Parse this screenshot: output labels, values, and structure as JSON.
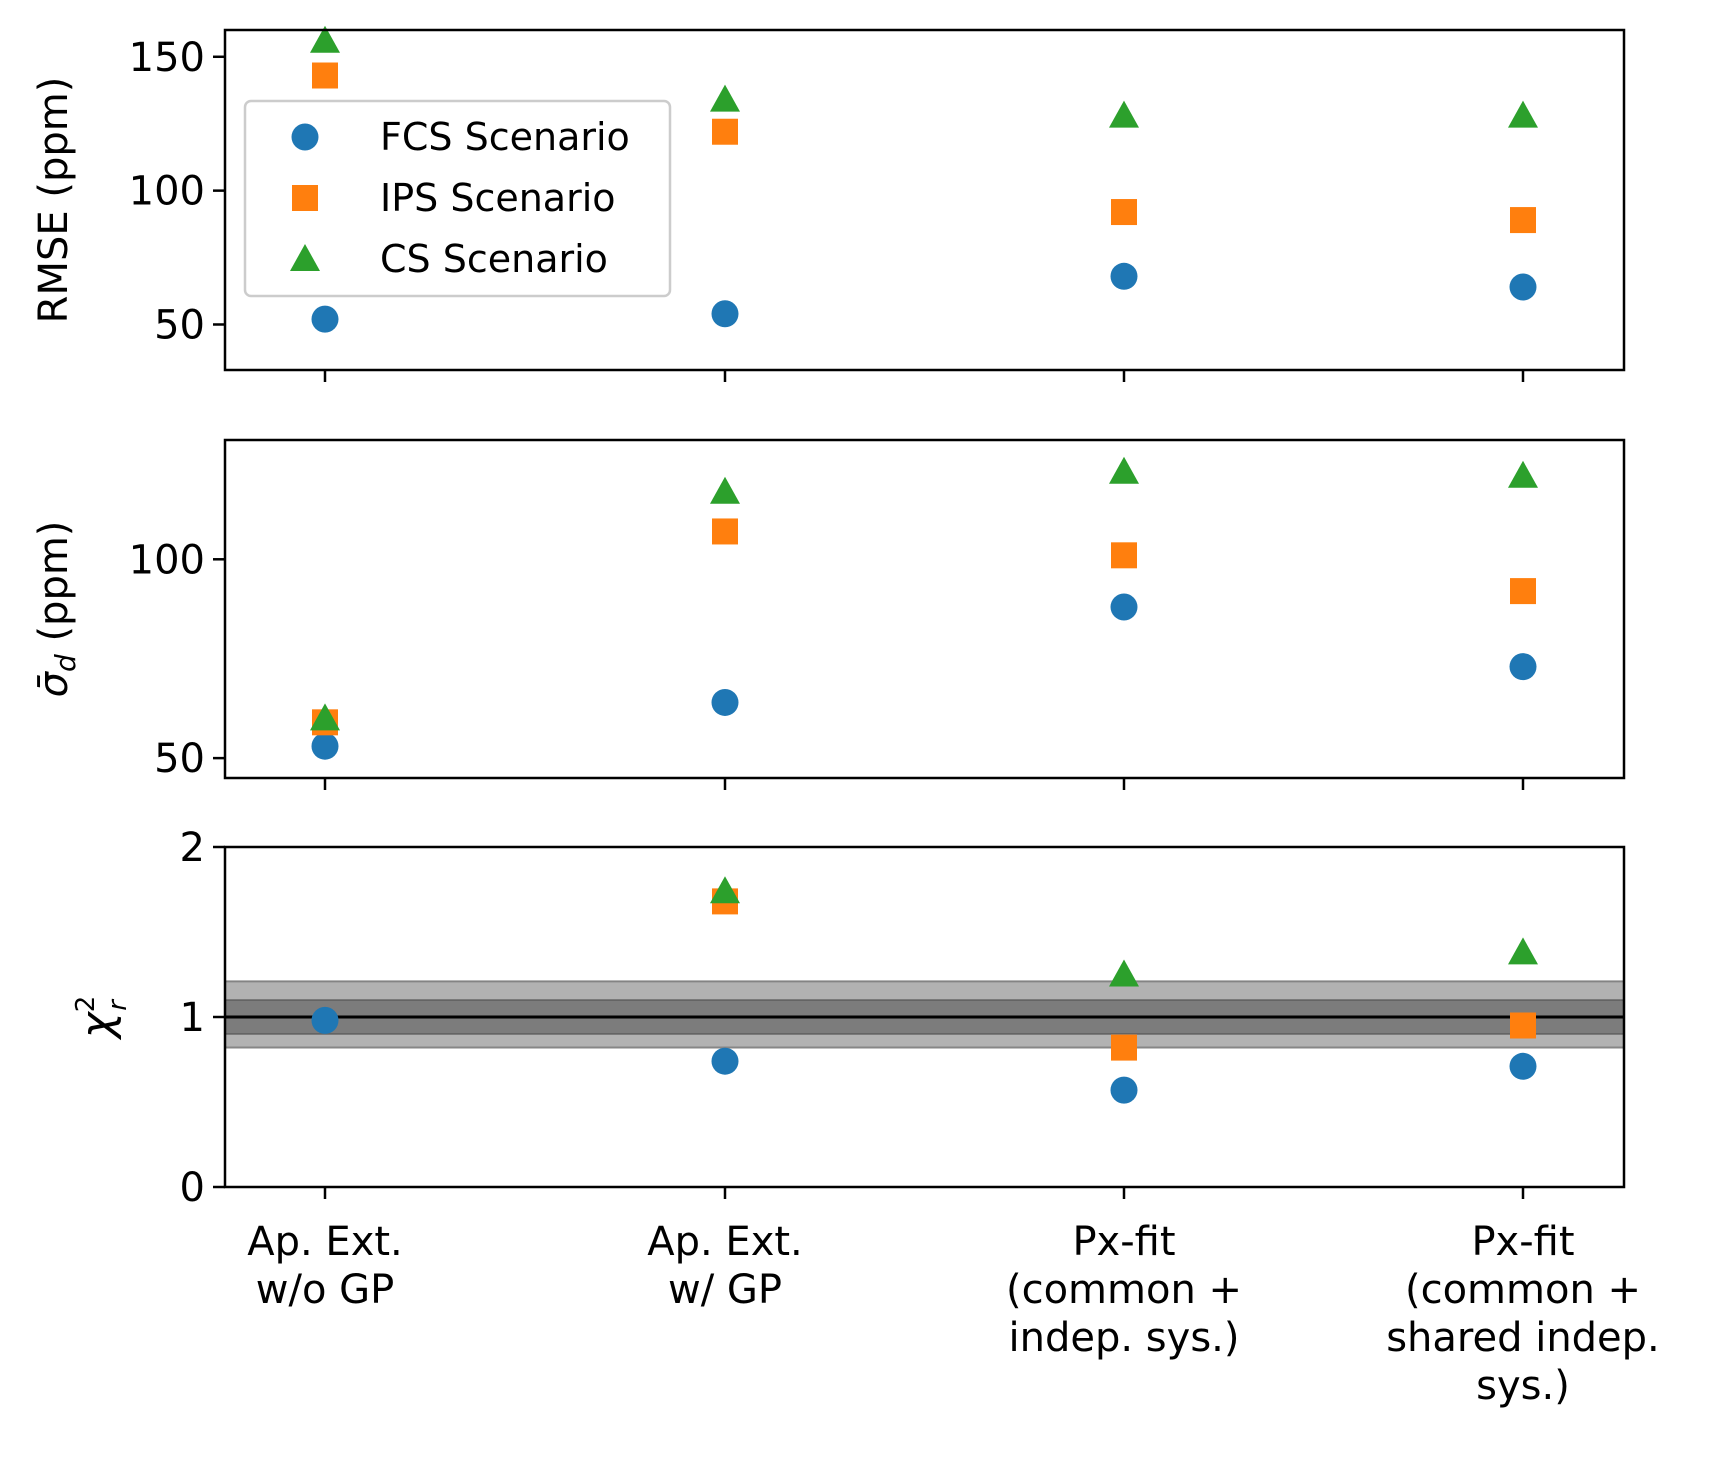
{
  "chart_data": {
    "type": "scatter",
    "categories": [
      [
        "Ap. Ext.",
        "w/o GP"
      ],
      [
        "Ap. Ext.",
        "w/ GP"
      ],
      [
        "Px-fit",
        "(common +",
        "indep. sys.)"
      ],
      [
        "Px-fit",
        "(common +",
        "shared indep.",
        "sys.)"
      ]
    ],
    "legend": {
      "placement": "upper-left of top panel",
      "entries": [
        "FCS Scenario",
        "IPS Scenario",
        "CS Scenario"
      ]
    },
    "series_style": [
      {
        "name": "FCS Scenario",
        "marker": "circle",
        "color": "#1f77b4"
      },
      {
        "name": "IPS Scenario",
        "marker": "square",
        "color": "#ff7f0e"
      },
      {
        "name": "CS Scenario",
        "marker": "triangle",
        "color": "#2ca02c"
      }
    ],
    "panels": [
      {
        "id": "rmse",
        "ylabel": "RMSE (ppm)",
        "ylim": [
          33,
          160
        ],
        "yticks": [
          50,
          100,
          150
        ],
        "series": [
          {
            "name": "FCS Scenario",
            "values": [
              52,
              54,
              68,
              64
            ]
          },
          {
            "name": "IPS Scenario",
            "values": [
              143,
              122,
              92,
              89
            ]
          },
          {
            "name": "CS Scenario",
            "values": [
              156,
              134,
              128,
              128
            ]
          }
        ]
      },
      {
        "id": "sigma",
        "ylabel": "σ̄_d (ppm)",
        "ylabel_main": "σ̄",
        "ylabel_sub": "d",
        "ylabel_rest": " (ppm)",
        "ylim": [
          45,
          130
        ],
        "yticks": [
          50,
          100
        ],
        "series": [
          {
            "name": "FCS Scenario",
            "values": [
              53,
              64,
              88,
              73
            ]
          },
          {
            "name": "IPS Scenario",
            "values": [
              59,
              107,
              101,
              92
            ]
          },
          {
            "name": "CS Scenario",
            "values": [
              60,
              117,
              122,
              121
            ]
          }
        ]
      },
      {
        "id": "chi2",
        "ylabel": "χ²_r",
        "ylabel_main": "χ",
        "ylabel_sup": "2",
        "ylabel_sub": "r",
        "ylim": [
          0,
          2
        ],
        "yticks": [
          0,
          1,
          2
        ],
        "reference_line": 1,
        "bands": [
          {
            "range": [
              0.82,
              1.21
            ],
            "label": "outer band"
          },
          {
            "range": [
              0.9,
              1.1
            ],
            "label": "inner band"
          }
        ],
        "series": [
          {
            "name": "FCS Scenario",
            "values": [
              0.98,
              0.74,
              0.57,
              0.71
            ]
          },
          {
            "name": "IPS Scenario",
            "values": [
              null,
              1.68,
              0.82,
              0.95
            ]
          },
          {
            "name": "CS Scenario",
            "values": [
              null,
              1.74,
              1.25,
              1.38
            ]
          }
        ]
      }
    ]
  }
}
